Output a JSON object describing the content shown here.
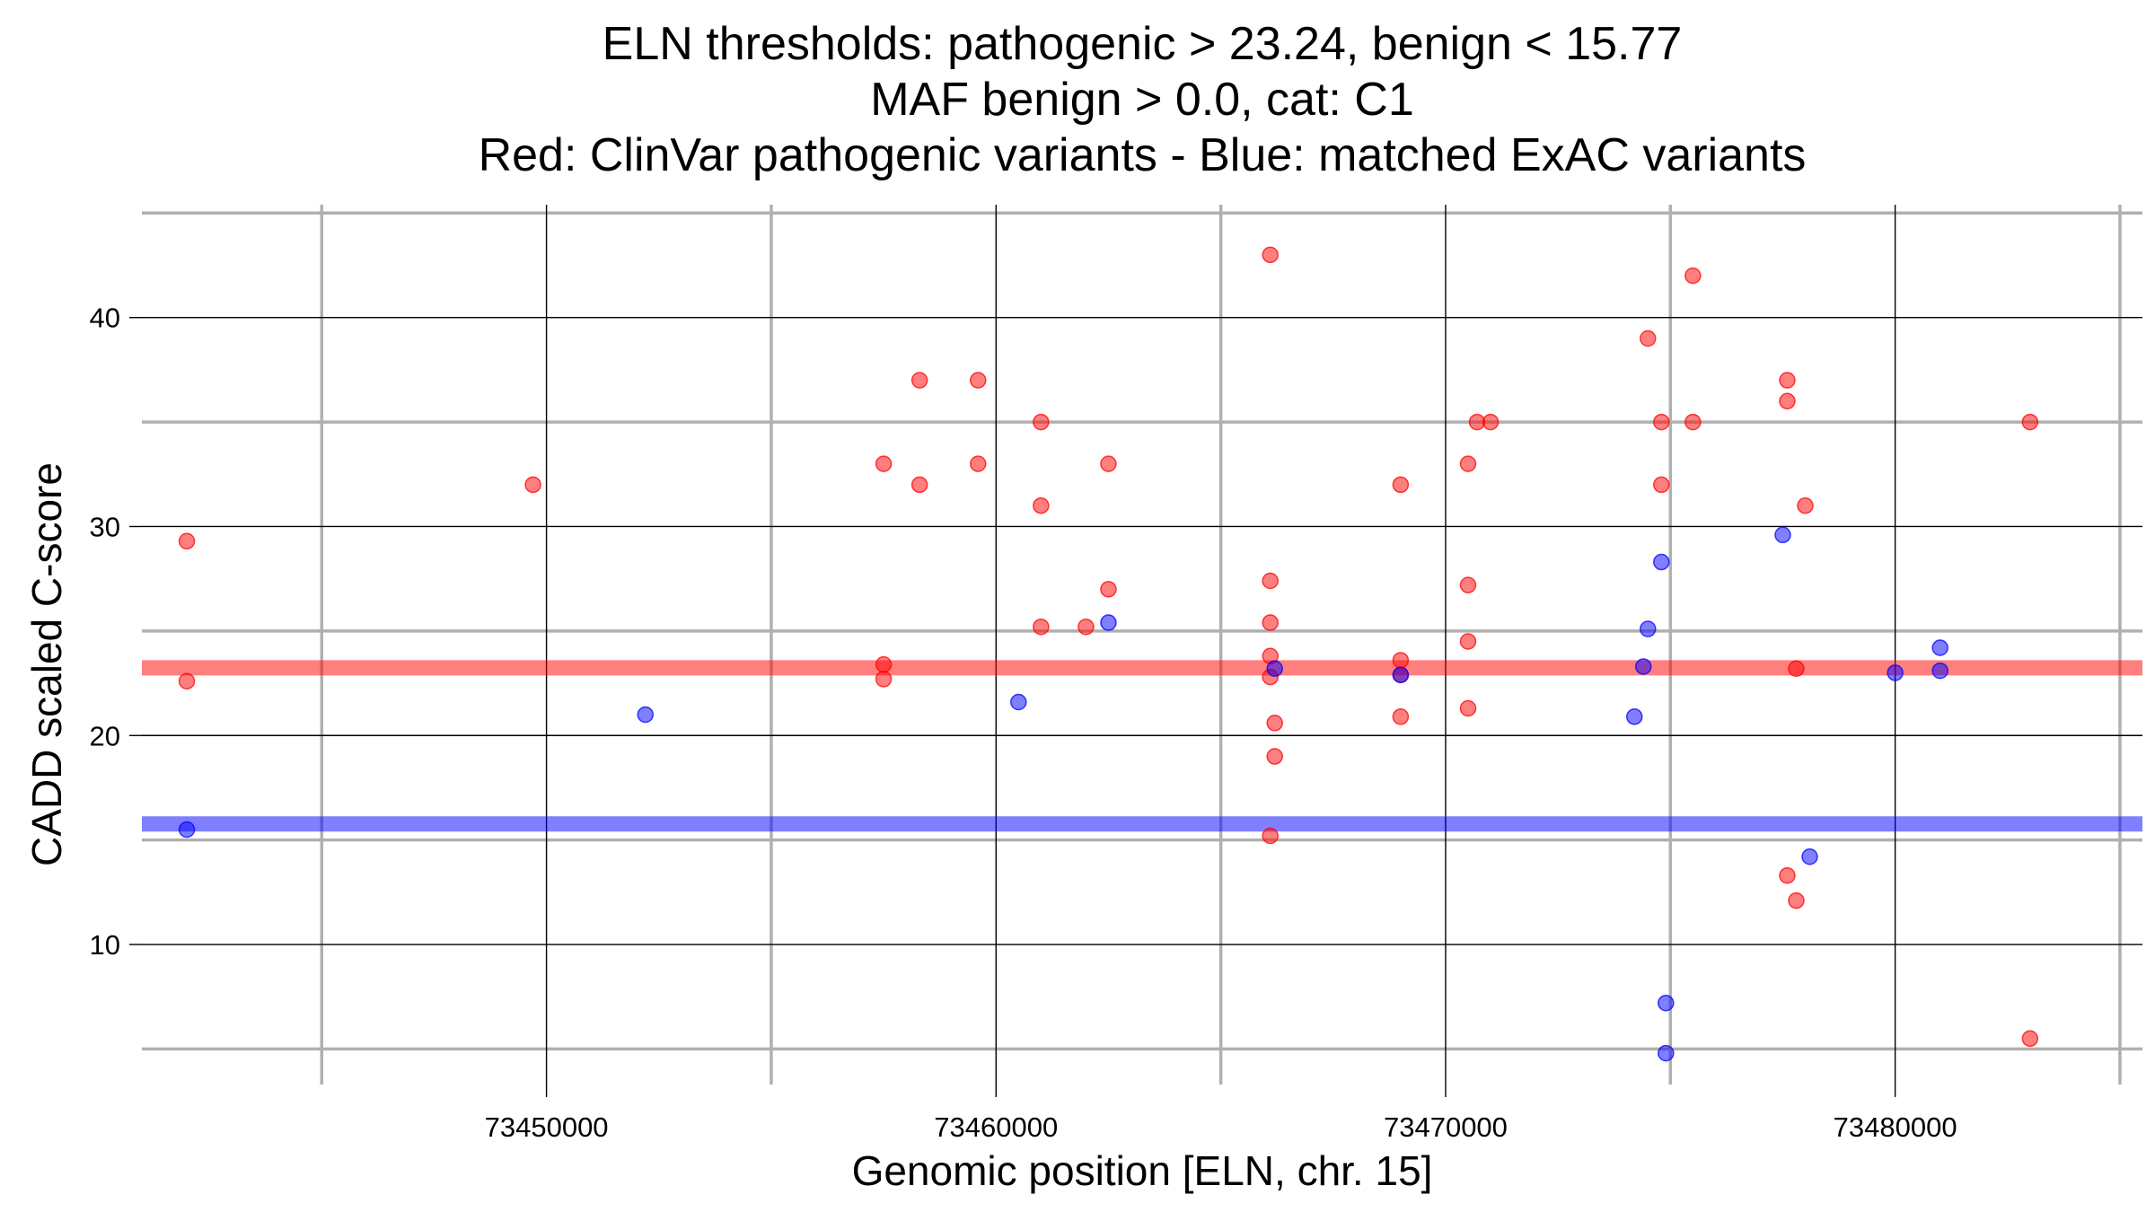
{
  "chart_data": {
    "type": "scatter",
    "title_lines": [
      "ELN thresholds: pathogenic > 23.24, benign < 15.77",
      "MAF benign > 0.0, cat: C1",
      "Red: ClinVar pathogenic variants - Blue: matched ExAC variants"
    ],
    "xlabel": "Genomic position [ELN, chr. 15]",
    "ylabel": "CADD scaled C-score",
    "xlim": [
      73441000,
      73485500
    ],
    "ylim": [
      3.3,
      45.4
    ],
    "x_ticks": [
      73450000,
      73460000,
      73470000,
      73480000
    ],
    "x_tick_labels": [
      "73450000",
      "73460000",
      "73470000",
      "73480000"
    ],
    "y_ticks": [
      10,
      20,
      30,
      40
    ],
    "y_tick_labels": [
      "10",
      "20",
      "30",
      "40"
    ],
    "grid": true,
    "thresholds": [
      {
        "y": 23.24,
        "color": "#ff0000"
      },
      {
        "y": 15.77,
        "color": "#0000ff"
      }
    ],
    "series": [
      {
        "color": "#ff0000",
        "points": [
          [
            73442000,
            29.3
          ],
          [
            73442000,
            22.6
          ],
          [
            73449700,
            32
          ],
          [
            73457500,
            33
          ],
          [
            73457500,
            23.4
          ],
          [
            73457500,
            22.7
          ],
          [
            73458300,
            37
          ],
          [
            73458300,
            32
          ],
          [
            73459600,
            37
          ],
          [
            73459600,
            33
          ],
          [
            73461000,
            35
          ],
          [
            73461000,
            31
          ],
          [
            73461000,
            25.2
          ],
          [
            73462000,
            25.2
          ],
          [
            73462500,
            33
          ],
          [
            73462500,
            27
          ],
          [
            73466100,
            43
          ],
          [
            73466100,
            27.4
          ],
          [
            73466100,
            25.4
          ],
          [
            73466100,
            23.8
          ],
          [
            73466100,
            22.8
          ],
          [
            73466100,
            15.2
          ],
          [
            73466200,
            20.6
          ],
          [
            73466200,
            19
          ],
          [
            73469000,
            32
          ],
          [
            73469000,
            23.6
          ],
          [
            73469000,
            22.9
          ],
          [
            73469000,
            20.9
          ],
          [
            73470500,
            33
          ],
          [
            73470500,
            27.2
          ],
          [
            73470500,
            24.5
          ],
          [
            73470500,
            21.3
          ],
          [
            73470700,
            35
          ],
          [
            73471000,
            35
          ],
          [
            73474500,
            39
          ],
          [
            73474800,
            35
          ],
          [
            73474800,
            32
          ],
          [
            73475500,
            42
          ],
          [
            73475500,
            35
          ],
          [
            73477600,
            37
          ],
          [
            73477600,
            36
          ],
          [
            73477600,
            13.3
          ],
          [
            73477800,
            23.2
          ],
          [
            73477800,
            12.1
          ],
          [
            73478000,
            31
          ],
          [
            73483000,
            35
          ],
          [
            73483000,
            5.5
          ]
        ]
      },
      {
        "color": "#0000ff",
        "points": [
          [
            73442000,
            15.5
          ],
          [
            73452200,
            21
          ],
          [
            73460500,
            21.6
          ],
          [
            73462500,
            25.4
          ],
          [
            73466200,
            23.2
          ],
          [
            73469000,
            22.9
          ],
          [
            73474200,
            20.9
          ],
          [
            73474400,
            23.3
          ],
          [
            73474500,
            25.1
          ],
          [
            73474800,
            28.3
          ],
          [
            73474900,
            7.2
          ],
          [
            73474900,
            4.8
          ],
          [
            73477500,
            29.6
          ],
          [
            73478100,
            14.2
          ],
          [
            73480000,
            23
          ],
          [
            73481000,
            24.2
          ],
          [
            73481000,
            23.1
          ]
        ]
      }
    ]
  }
}
